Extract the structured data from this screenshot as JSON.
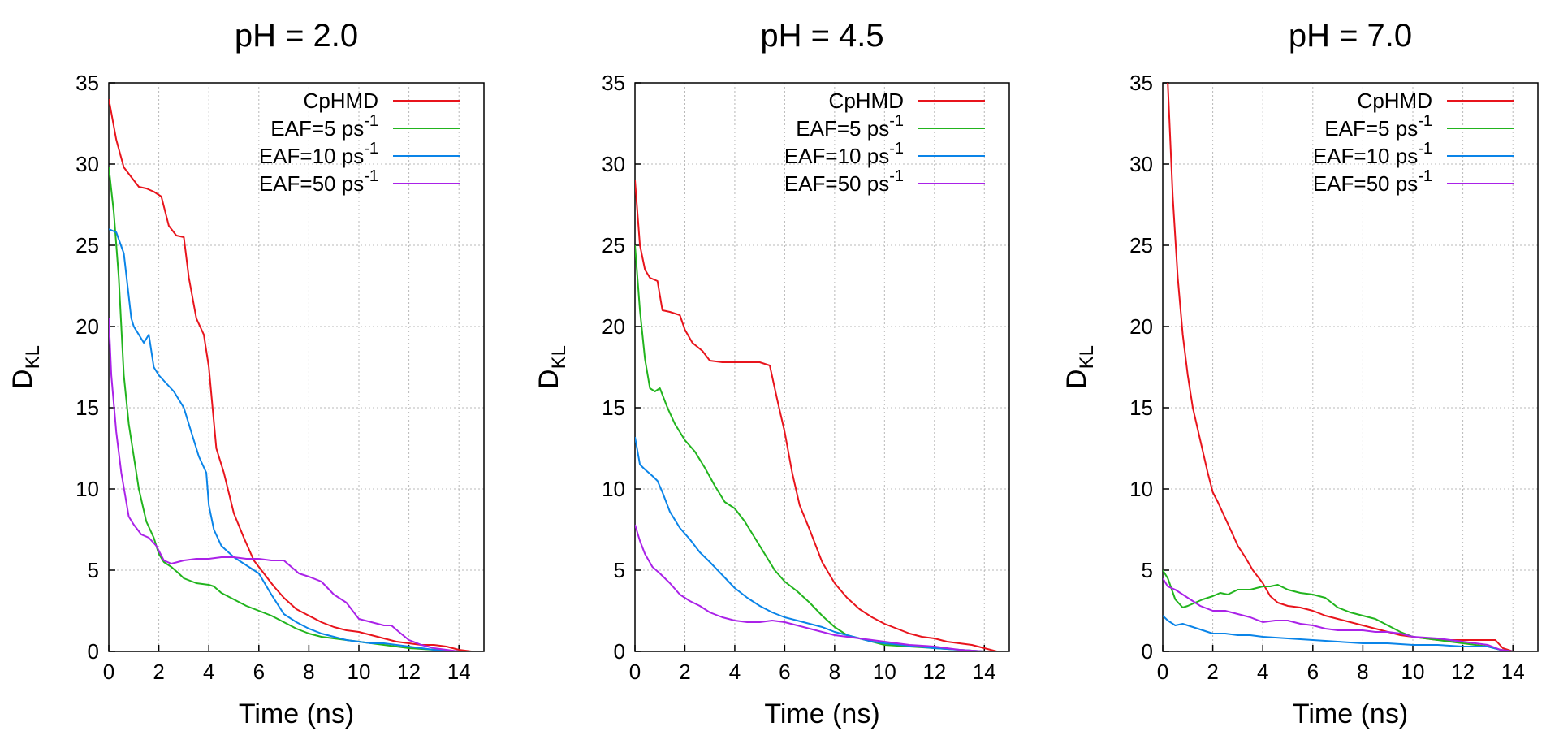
{
  "legend_order": [
    "CpHMD",
    "EAF=5",
    "EAF=10",
    "EAF=50"
  ],
  "chart_data": [
    {
      "type": "line",
      "title": "pH = 2.0",
      "xlabel": "Time (ns)",
      "ylabel": "D",
      "ylabel_subscript": "KL",
      "xlim": [
        0,
        15
      ],
      "ylim": [
        0,
        35
      ],
      "x_ticks": [
        0,
        2,
        4,
        6,
        8,
        10,
        12,
        14
      ],
      "y_ticks": [
        0,
        5,
        10,
        15,
        20,
        25,
        30,
        35
      ],
      "grid": true,
      "legend_position": "top-right",
      "series": [
        {
          "name": "CpHMD",
          "legend_sup": "",
          "color": "#e8141c",
          "x": [
            0,
            0.3,
            0.6,
            0.9,
            1.2,
            1.5,
            1.8,
            2.1,
            2.4,
            2.7,
            3.0,
            3.2,
            3.5,
            3.8,
            4.0,
            4.3,
            4.6,
            5.0,
            5.4,
            5.8,
            6.2,
            6.6,
            7.0,
            7.5,
            8.0,
            8.5,
            9.0,
            9.5,
            10.0,
            10.5,
            11.0,
            11.5,
            12.0,
            12.5,
            13.0,
            13.5,
            14.0,
            14.5
          ],
          "y": [
            34,
            31.5,
            29.8,
            29.2,
            28.6,
            28.5,
            28.3,
            28,
            26.2,
            25.6,
            25.5,
            23,
            20.5,
            19.5,
            17.5,
            12.5,
            11,
            8.5,
            7,
            5.6,
            4.8,
            4,
            3.3,
            2.6,
            2.2,
            1.8,
            1.5,
            1.3,
            1.2,
            1,
            0.8,
            0.6,
            0.5,
            0.4,
            0.4,
            0.3,
            0.1,
            0
          ]
        },
        {
          "name": "EAF=5",
          "legend_sup": "-1",
          "color": "#22b41e",
          "x": [
            0,
            0.2,
            0.4,
            0.6,
            0.8,
            1.0,
            1.2,
            1.5,
            1.8,
            2.0,
            2.2,
            2.5,
            2.8,
            3.0,
            3.5,
            4.0,
            4.2,
            4.5,
            5.0,
            5.5,
            6.0,
            6.5,
            7.0,
            7.5,
            8.0,
            8.5,
            9.0,
            9.5,
            10.0,
            10.5,
            11.0,
            12.0,
            13.0,
            14.0
          ],
          "y": [
            29.8,
            27,
            23,
            17,
            14,
            12,
            10,
            8,
            7,
            6,
            5.5,
            5.2,
            4.8,
            4.5,
            4.2,
            4.1,
            4,
            3.6,
            3.2,
            2.8,
            2.5,
            2.2,
            1.8,
            1.4,
            1.1,
            0.9,
            0.8,
            0.7,
            0.6,
            0.5,
            0.4,
            0.2,
            0.1,
            0
          ]
        },
        {
          "name": "EAF=10",
          "legend_sup": "-1",
          "color": "#0a84e8",
          "x": [
            0,
            0.3,
            0.6,
            0.9,
            1.0,
            1.2,
            1.4,
            1.6,
            1.8,
            2.0,
            2.3,
            2.6,
            3.0,
            3.3,
            3.6,
            3.9,
            4.0,
            4.2,
            4.5,
            5.0,
            5.5,
            6.0,
            6.5,
            7.0,
            7.5,
            8.0,
            8.5,
            9.0,
            9.5,
            10.0,
            10.5,
            11.0,
            11.5,
            12.0,
            12.5,
            13.0,
            14.0
          ],
          "y": [
            26,
            25.8,
            24.5,
            20.5,
            20,
            19.5,
            19,
            19.5,
            17.5,
            17,
            16.5,
            16,
            15,
            13.5,
            12,
            11,
            9,
            7.5,
            6.5,
            5.8,
            5.3,
            4.8,
            3.5,
            2.3,
            1.8,
            1.4,
            1.1,
            0.9,
            0.7,
            0.6,
            0.5,
            0.5,
            0.4,
            0.3,
            0.2,
            0.1,
            0
          ]
        },
        {
          "name": "EAF=50",
          "legend_sup": "-1",
          "color": "#aa22e8",
          "x": [
            0,
            0.1,
            0.3,
            0.5,
            0.8,
            1.0,
            1.3,
            1.6,
            1.9,
            2.2,
            2.5,
            3.0,
            3.5,
            4.0,
            4.5,
            5.0,
            5.5,
            6.0,
            6.5,
            7.0,
            7.3,
            7.6,
            8.0,
            8.5,
            9.0,
            9.5,
            10.0,
            10.5,
            11.0,
            11.3,
            11.6,
            12.0,
            12.5,
            13.0,
            14.0
          ],
          "y": [
            20.5,
            17,
            13.5,
            11,
            8.3,
            7.8,
            7.2,
            7,
            6.5,
            5.6,
            5.4,
            5.6,
            5.7,
            5.7,
            5.8,
            5.8,
            5.7,
            5.7,
            5.6,
            5.6,
            5.2,
            4.8,
            4.6,
            4.3,
            3.5,
            3,
            2,
            1.8,
            1.6,
            1.6,
            1.2,
            0.7,
            0.4,
            0.2,
            0
          ]
        }
      ]
    },
    {
      "type": "line",
      "title": "pH = 4.5",
      "xlabel": "Time (ns)",
      "ylabel": "D",
      "ylabel_subscript": "KL",
      "xlim": [
        0,
        15
      ],
      "ylim": [
        0,
        35
      ],
      "x_ticks": [
        0,
        2,
        4,
        6,
        8,
        10,
        12,
        14
      ],
      "y_ticks": [
        0,
        5,
        10,
        15,
        20,
        25,
        30,
        35
      ],
      "grid": true,
      "legend_position": "top-right",
      "series": [
        {
          "name": "CpHMD",
          "legend_sup": "",
          "color": "#e8141c",
          "x": [
            0,
            0.2,
            0.4,
            0.6,
            0.9,
            1.1,
            1.4,
            1.8,
            2.0,
            2.3,
            2.7,
            3.0,
            3.5,
            4.0,
            4.5,
            5.0,
            5.4,
            5.7,
            6.0,
            6.3,
            6.6,
            7.0,
            7.5,
            8.0,
            8.5,
            9.0,
            9.5,
            10.0,
            10.5,
            11.0,
            11.5,
            12.0,
            12.5,
            13.0,
            13.5,
            14.0,
            14.5
          ],
          "y": [
            29,
            25,
            23.5,
            23,
            22.8,
            21,
            20.9,
            20.7,
            19.8,
            19,
            18.5,
            17.9,
            17.8,
            17.8,
            17.8,
            17.8,
            17.6,
            15.5,
            13.5,
            11,
            9,
            7.5,
            5.5,
            4.2,
            3.3,
            2.6,
            2.1,
            1.7,
            1.4,
            1.1,
            0.9,
            0.8,
            0.6,
            0.5,
            0.4,
            0.2,
            0
          ]
        },
        {
          "name": "EAF=5",
          "legend_sup": "-1",
          "color": "#22b41e",
          "x": [
            0,
            0.2,
            0.4,
            0.6,
            0.8,
            1.0,
            1.3,
            1.6,
            2.0,
            2.4,
            2.8,
            3.2,
            3.6,
            4.0,
            4.4,
            4.8,
            5.2,
            5.6,
            6.0,
            6.5,
            7.0,
            7.5,
            8.0,
            8.5,
            9.0,
            9.5,
            10.0,
            11.0,
            12.0,
            13.0,
            14.0
          ],
          "y": [
            25,
            21,
            18,
            16.2,
            16,
            16.2,
            15,
            14,
            13,
            12.3,
            11.3,
            10.2,
            9.2,
            8.8,
            8,
            7,
            6,
            5,
            4.3,
            3.7,
            3,
            2.2,
            1.5,
            1,
            0.8,
            0.6,
            0.4,
            0.3,
            0.2,
            0.1,
            0
          ]
        },
        {
          "name": "EAF=10",
          "legend_sup": "-1",
          "color": "#0a84e8",
          "x": [
            0,
            0.2,
            0.4,
            0.7,
            0.9,
            1.1,
            1.4,
            1.8,
            2.2,
            2.6,
            3.0,
            3.5,
            4.0,
            4.5,
            5.0,
            5.5,
            6.0,
            6.5,
            7.0,
            7.5,
            8.0,
            8.5,
            9.0,
            9.5,
            10.0,
            11.0,
            12.0,
            13.0,
            14.0
          ],
          "y": [
            13.2,
            11.5,
            11.2,
            10.8,
            10.5,
            9.8,
            8.6,
            7.6,
            6.9,
            6.1,
            5.5,
            4.7,
            3.9,
            3.3,
            2.8,
            2.4,
            2.1,
            1.9,
            1.7,
            1.5,
            1.2,
            1,
            0.8,
            0.6,
            0.5,
            0.35,
            0.2,
            0.1,
            0
          ]
        },
        {
          "name": "EAF=50",
          "legend_sup": "-1",
          "color": "#aa22e8",
          "x": [
            0,
            0.2,
            0.4,
            0.7,
            1.0,
            1.4,
            1.8,
            2.2,
            2.6,
            3.0,
            3.5,
            4.0,
            4.5,
            5.0,
            5.5,
            6.0,
            6.5,
            7.0,
            7.5,
            8.0,
            8.5,
            9.0,
            9.5,
            10.0,
            11.0,
            12.0,
            13.0,
            14.0
          ],
          "y": [
            7.8,
            6.8,
            6,
            5.2,
            4.8,
            4.2,
            3.5,
            3.1,
            2.8,
            2.4,
            2.1,
            1.9,
            1.8,
            1.8,
            1.9,
            1.8,
            1.6,
            1.4,
            1.2,
            1,
            0.9,
            0.8,
            0.7,
            0.6,
            0.4,
            0.3,
            0.1,
            0
          ]
        }
      ]
    },
    {
      "type": "line",
      "title": "pH = 7.0",
      "xlabel": "Time (ns)",
      "ylabel": "D",
      "ylabel_subscript": "KL",
      "xlim": [
        0,
        15
      ],
      "ylim": [
        0,
        35
      ],
      "x_ticks": [
        0,
        2,
        4,
        6,
        8,
        10,
        12,
        14
      ],
      "y_ticks": [
        0,
        5,
        10,
        15,
        20,
        25,
        30,
        35
      ],
      "grid": true,
      "legend_position": "top-right",
      "series": [
        {
          "name": "CpHMD",
          "legend_sup": "",
          "color": "#e8141c",
          "x": [
            0.2,
            0.4,
            0.6,
            0.8,
            1.0,
            1.2,
            1.5,
            1.8,
            2.0,
            2.2,
            2.5,
            2.8,
            3.0,
            3.3,
            3.6,
            4.0,
            4.3,
            4.6,
            5.0,
            5.5,
            6.0,
            6.5,
            7.0,
            7.5,
            8.0,
            8.5,
            9.0,
            9.5,
            10.0,
            10.5,
            11.0,
            12.0,
            13.0,
            13.3,
            13.6,
            14.0
          ],
          "y": [
            35,
            28,
            23,
            19.5,
            17,
            15,
            13,
            11,
            9.8,
            9.2,
            8.2,
            7.2,
            6.5,
            5.8,
            5,
            4.2,
            3.4,
            3,
            2.8,
            2.7,
            2.5,
            2.2,
            2,
            1.8,
            1.6,
            1.4,
            1.2,
            1,
            0.9,
            0.8,
            0.7,
            0.7,
            0.7,
            0.7,
            0.2,
            0
          ]
        },
        {
          "name": "EAF=5",
          "legend_sup": "-1",
          "color": "#22b41e",
          "x": [
            0,
            0.2,
            0.5,
            0.8,
            1.0,
            1.3,
            1.6,
            2.0,
            2.3,
            2.6,
            3.0,
            3.5,
            4.0,
            4.3,
            4.6,
            5.0,
            5.5,
            6.0,
            6.5,
            7.0,
            7.5,
            8.0,
            8.5,
            9.0,
            9.5,
            10.0,
            11.0,
            12.0,
            13.0,
            13.5,
            14.0
          ],
          "y": [
            5,
            4.5,
            3.2,
            2.7,
            2.8,
            3,
            3.2,
            3.4,
            3.6,
            3.5,
            3.8,
            3.8,
            4,
            4,
            4.1,
            3.8,
            3.6,
            3.5,
            3.3,
            2.7,
            2.4,
            2.2,
            2,
            1.6,
            1.2,
            0.9,
            0.7,
            0.5,
            0.3,
            0.1,
            0
          ]
        },
        {
          "name": "EAF=10",
          "legend_sup": "-1",
          "color": "#0a84e8",
          "x": [
            0,
            0.2,
            0.5,
            0.8,
            1.2,
            1.6,
            2.0,
            2.5,
            3.0,
            3.5,
            4.0,
            5.0,
            6.0,
            7.0,
            8.0,
            9.0,
            10.0,
            11.0,
            12.0,
            13.0,
            13.5,
            14.0
          ],
          "y": [
            2.2,
            1.9,
            1.6,
            1.7,
            1.5,
            1.3,
            1.1,
            1.1,
            1,
            1,
            0.9,
            0.8,
            0.7,
            0.6,
            0.5,
            0.5,
            0.4,
            0.4,
            0.3,
            0.3,
            0.1,
            0
          ]
        },
        {
          "name": "EAF=50",
          "legend_sup": "-1",
          "color": "#aa22e8",
          "x": [
            0,
            0.2,
            0.5,
            1.0,
            1.5,
            2.0,
            2.5,
            3.0,
            3.5,
            4.0,
            4.5,
            5.0,
            5.5,
            6.0,
            6.5,
            7.0,
            7.5,
            8.0,
            8.5,
            9.0,
            9.5,
            10.0,
            11.0,
            12.0,
            13.0,
            13.5,
            14.0
          ],
          "y": [
            4.5,
            4,
            3.8,
            3.3,
            2.8,
            2.5,
            2.5,
            2.3,
            2.1,
            1.8,
            1.9,
            1.9,
            1.7,
            1.6,
            1.4,
            1.3,
            1.3,
            1.3,
            1.2,
            1.2,
            1.1,
            0.9,
            0.8,
            0.6,
            0.4,
            0.1,
            0
          ]
        }
      ]
    }
  ]
}
